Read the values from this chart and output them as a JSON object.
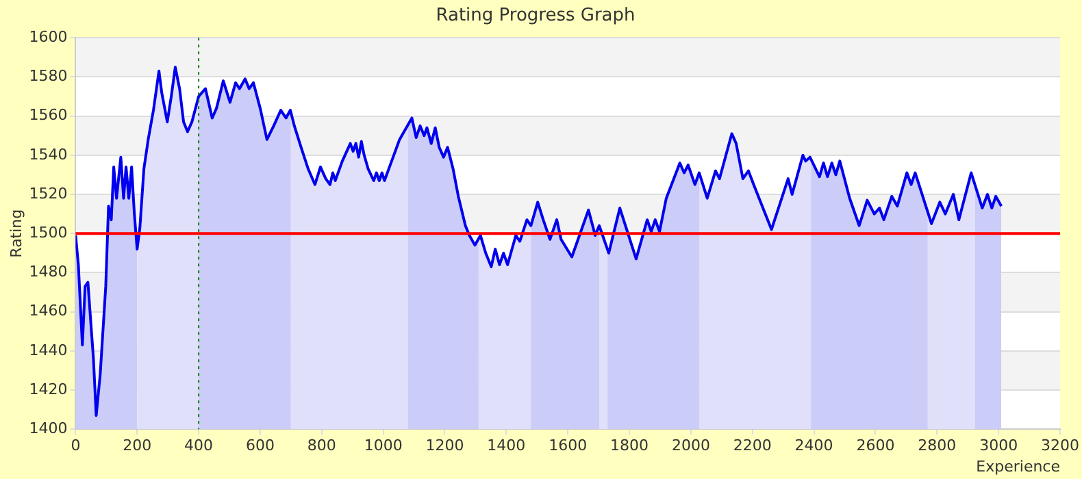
{
  "chart_data": {
    "type": "line",
    "title": "Rating Progress Graph",
    "xlabel": "Experience",
    "ylabel": "Rating",
    "x": [
      0,
      9,
      22,
      31,
      40,
      58,
      67,
      80,
      98,
      107,
      116,
      124,
      133,
      147,
      156,
      164,
      173,
      182,
      191,
      200,
      209,
      222,
      236,
      253,
      271,
      280,
      298,
      311,
      324,
      338,
      351,
      364,
      378,
      400,
      422,
      444,
      458,
      480,
      502,
      520,
      533,
      551,
      564,
      578,
      600,
      622,
      644,
      667,
      684,
      698,
      711,
      733,
      756,
      778,
      796,
      813,
      827,
      836,
      844,
      867,
      893,
      902,
      911,
      920,
      929,
      938,
      951,
      969,
      978,
      987,
      996,
      1004,
      1018,
      1053,
      1093,
      1107,
      1120,
      1133,
      1142,
      1156,
      1169,
      1182,
      1196,
      1209,
      1227,
      1244,
      1267,
      1280,
      1298,
      1316,
      1333,
      1351,
      1364,
      1378,
      1391,
      1404,
      1431,
      1444,
      1467,
      1480,
      1502,
      1520,
      1542,
      1564,
      1578,
      1613,
      1667,
      1689,
      1702,
      1733,
      1769,
      1822,
      1858,
      1871,
      1884,
      1898,
      1920,
      1964,
      1978,
      1991,
      2013,
      2027,
      2053,
      2080,
      2093,
      2133,
      2147,
      2169,
      2187,
      2204,
      2262,
      2316,
      2329,
      2364,
      2373,
      2387,
      2418,
      2431,
      2444,
      2458,
      2471,
      2484,
      2516,
      2547,
      2573,
      2596,
      2613,
      2627,
      2653,
      2671,
      2702,
      2716,
      2729,
      2782,
      2809,
      2827,
      2853,
      2871,
      2911,
      2947,
      2964,
      2978,
      2991,
      3009
    ],
    "series": [
      {
        "color": "#0000ee",
        "values": [
          1499,
          1484,
          1443,
          1473,
          1475,
          1436,
          1407,
          1428,
          1473,
          1514,
          1507,
          1534,
          1518,
          1539,
          1518,
          1534,
          1518,
          1534,
          1510,
          1492,
          1503,
          1533,
          1548,
          1563,
          1583,
          1572,
          1557,
          1570,
          1585,
          1574,
          1557,
          1552,
          1557,
          1570,
          1574,
          1559,
          1564,
          1578,
          1567,
          1577,
          1574,
          1579,
          1574,
          1577,
          1564,
          1548,
          1555,
          1563,
          1559,
          1563,
          1555,
          1544,
          1533,
          1525,
          1534,
          1528,
          1525,
          1531,
          1527,
          1537,
          1546,
          1542,
          1546,
          1539,
          1547,
          1540,
          1533,
          1527,
          1531,
          1527,
          1531,
          1527,
          1533,
          1548,
          1559,
          1549,
          1555,
          1550,
          1554,
          1546,
          1554,
          1544,
          1539,
          1544,
          1533,
          1519,
          1504,
          1499,
          1494,
          1499,
          1490,
          1483,
          1492,
          1484,
          1490,
          1484,
          1499,
          1496,
          1507,
          1504,
          1516,
          1507,
          1497,
          1507,
          1497,
          1488,
          1512,
          1499,
          1504,
          1490,
          1513,
          1487,
          1507,
          1501,
          1507,
          1501,
          1518,
          1536,
          1531,
          1535,
          1525,
          1531,
          1518,
          1532,
          1528,
          1551,
          1546,
          1528,
          1532,
          1525,
          1502,
          1528,
          1520,
          1540,
          1537,
          1539,
          1529,
          1536,
          1529,
          1536,
          1530,
          1537,
          1518,
          1504,
          1517,
          1510,
          1513,
          1507,
          1519,
          1514,
          1531,
          1525,
          1531,
          1505,
          1516,
          1510,
          1520,
          1507,
          1531,
          1513,
          1520,
          1513,
          1519,
          1514
        ]
      }
    ],
    "xlim": [
      0,
      3200
    ],
    "xticks": [
      0,
      200,
      400,
      600,
      800,
      1000,
      1200,
      1400,
      1600,
      1800,
      2000,
      2200,
      2400,
      2600,
      2800,
      3000,
      3200
    ],
    "ylim": [
      1400,
      1600
    ],
    "yticks": [
      1400,
      1420,
      1440,
      1460,
      1480,
      1500,
      1520,
      1540,
      1560,
      1580,
      1600
    ],
    "grid": "y",
    "ref_lines": [
      {
        "axis": "y",
        "value": 1500,
        "color": "#ff0000",
        "line_style": "solid"
      },
      {
        "axis": "x",
        "value": 400,
        "color": "#008000",
        "line_style": "dotted"
      }
    ],
    "bands": [
      {
        "axis": "x",
        "from": 0,
        "to": 200,
        "color": "#ccccf8"
      },
      {
        "axis": "x",
        "from": 200,
        "to": 400,
        "color": "#e0e0fa"
      },
      {
        "axis": "x",
        "from": 400,
        "to": 700,
        "color": "#ccccf8"
      },
      {
        "axis": "x",
        "from": 700,
        "to": 1080,
        "color": "#e0e0fa"
      },
      {
        "axis": "x",
        "from": 1080,
        "to": 1310,
        "color": "#ccccf8"
      },
      {
        "axis": "x",
        "from": 1310,
        "to": 1480,
        "color": "#e0e0fa"
      },
      {
        "axis": "x",
        "from": 1480,
        "to": 1702,
        "color": "#ccccf8"
      },
      {
        "axis": "x",
        "from": 1702,
        "to": 1729,
        "color": "#e0e0fa"
      },
      {
        "axis": "x",
        "from": 1729,
        "to": 2027,
        "color": "#ccccf8"
      },
      {
        "axis": "x",
        "from": 2027,
        "to": 2390,
        "color": "#e0e0fa"
      },
      {
        "axis": "x",
        "from": 2390,
        "to": 2770,
        "color": "#ccccf8"
      },
      {
        "axis": "x",
        "from": 2770,
        "to": 2924,
        "color": "#e0e0fa"
      },
      {
        "axis": "x",
        "from": 2924,
        "to": 3009,
        "color": "#ccccf8"
      }
    ]
  }
}
